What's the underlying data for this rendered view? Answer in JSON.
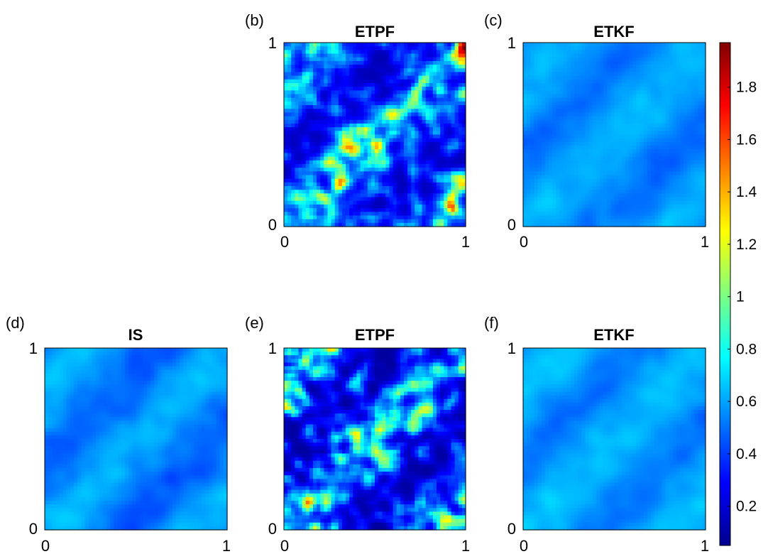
{
  "chart_data": {
    "type": "heatmap",
    "grid": [
      50,
      50
    ],
    "colormap": "jet",
    "colorbar": {
      "range": [
        0.05,
        1.97
      ],
      "ticks": [
        0.2,
        0.4,
        0.6,
        0.8,
        1,
        1.2,
        1.4,
        1.6,
        1.8
      ],
      "tick_labels": [
        "0.2",
        "0.4",
        "0.6",
        "0.8",
        "1",
        "1.2",
        "1.4",
        "1.6",
        "1.8"
      ],
      "placement": "right"
    },
    "panels": [
      {
        "id": "b",
        "label": "(b)",
        "title": "ETPF",
        "xlim": [
          0,
          1
        ],
        "ylim": [
          0,
          1
        ],
        "xticks": [
          "0",
          "1"
        ],
        "yticks": [
          "0",
          "1"
        ],
        "value_range": [
          0.15,
          1.97
        ],
        "texture": "patchy"
      },
      {
        "id": "c",
        "label": "(c)",
        "title": "ETKF",
        "xlim": [
          0,
          1
        ],
        "ylim": [
          0,
          1
        ],
        "xticks": [
          "0",
          "1"
        ],
        "yticks": [
          "0",
          "1"
        ],
        "value_range": [
          0.45,
          0.7
        ],
        "texture": "smooth-diagonal"
      },
      {
        "id": "d",
        "label": "(d)",
        "title": "IS",
        "xlim": [
          0,
          1
        ],
        "ylim": [
          0,
          1
        ],
        "xticks": [
          "0",
          "1"
        ],
        "yticks": [
          "0",
          "1"
        ],
        "value_range": [
          0.4,
          0.7
        ],
        "texture": "smooth-diagonal"
      },
      {
        "id": "e",
        "label": "(e)",
        "title": "ETPF",
        "xlim": [
          0,
          1
        ],
        "ylim": [
          0,
          1
        ],
        "xticks": [
          "0",
          "1"
        ],
        "yticks": [
          "0",
          "1"
        ],
        "value_range": [
          0.1,
          1.7
        ],
        "texture": "patchy"
      },
      {
        "id": "f",
        "label": "(f)",
        "title": "ETKF",
        "xlim": [
          0,
          1
        ],
        "ylim": [
          0,
          1
        ],
        "xticks": [
          "0",
          "1"
        ],
        "yticks": [
          "0",
          "1"
        ],
        "value_range": [
          0.45,
          0.7
        ],
        "texture": "smooth-diagonal"
      }
    ]
  }
}
